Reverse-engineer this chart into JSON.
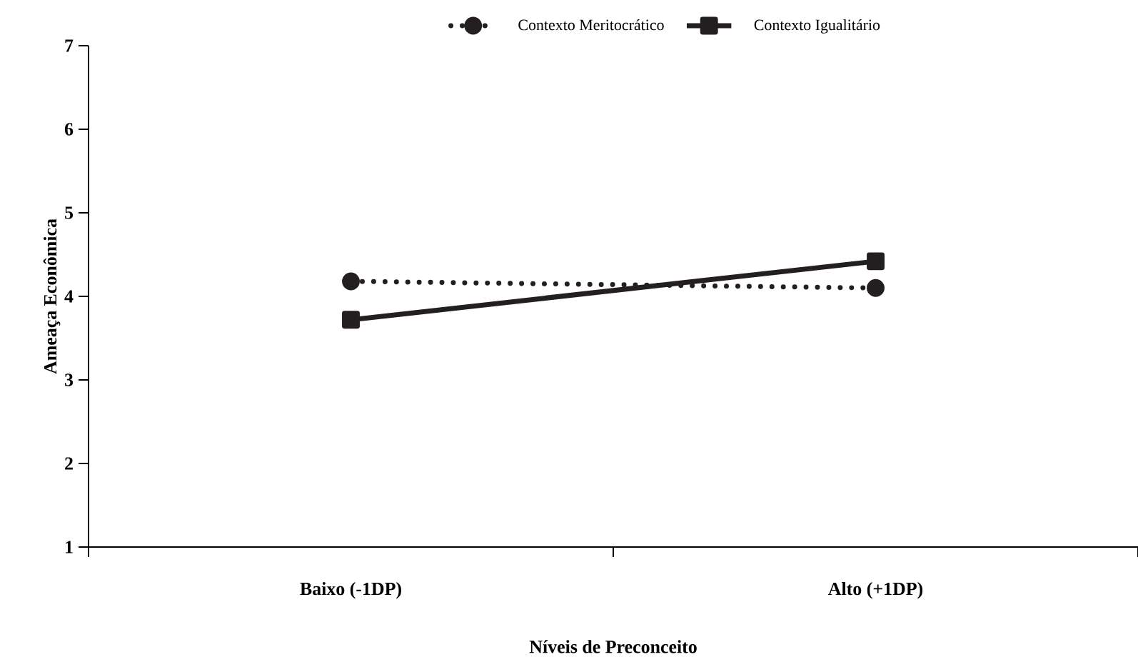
{
  "chart_data": {
    "type": "line",
    "xlabel": "Níveis de Preconceito",
    "ylabel": "Ameaça Econômica",
    "categories": [
      "Baixo (-1DP)",
      "Alto (+1DP)"
    ],
    "ylim": [
      1,
      7
    ],
    "yticks": [
      1,
      2,
      3,
      4,
      5,
      6,
      7
    ],
    "legend": "top",
    "grid": false,
    "series": [
      {
        "name": "Contexto Meritocrático",
        "color": "#231f20",
        "values": [
          4.18,
          4.1
        ],
        "marker": "circle",
        "line_style": "dotted"
      },
      {
        "name": "Contexto Igualitário",
        "color": "#231f20",
        "values": [
          3.72,
          4.42
        ],
        "marker": "square",
        "line_style": "solid"
      }
    ]
  }
}
